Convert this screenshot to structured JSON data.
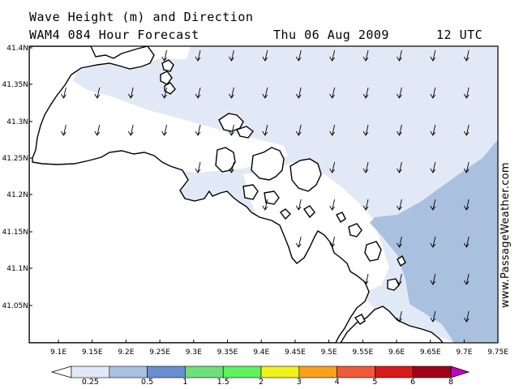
{
  "header": {
    "title": "Wave Height (m) and Direction",
    "subtitle": "WAM4 084 Hour Forecast",
    "date": "Thu 06 Aug 2009",
    "time": "12 UTC"
  },
  "watermark": "www.PassageWeather.com",
  "map": {
    "lat_labels": [
      "41.4N",
      "41.35N",
      "41.3N",
      "41.25N",
      "41.2N",
      "41.15N",
      "41.1N",
      "41.05N"
    ],
    "lon_labels": [
      "9.1E",
      "9.15E",
      "9.2E",
      "9.25E",
      "9.3E",
      "9.35E",
      "9.4E",
      "9.45E",
      "9.5E",
      "9.55E",
      "9.6E",
      "9.65E",
      "9.7E",
      "9.75E"
    ],
    "colors": {
      "sea_low": "#e2e9f6",
      "sea_mid": "#a9c0df",
      "land": "#ffffff",
      "coast": "#000000",
      "arrow": "#000000"
    },
    "wave_direction": "south-southwest"
  },
  "legend": {
    "labels": [
      "0.25",
      "0.5",
      "1",
      "1.5",
      "2",
      "3",
      "4",
      "5",
      "6",
      "8"
    ],
    "colors": [
      "#ffffff",
      "#e2e9f6",
      "#a9c0df",
      "#6a8fd3",
      "#6ee07a",
      "#5ff25f",
      "#f1f11c",
      "#f7a21a",
      "#f05a3a",
      "#d81a1a",
      "#a0001a",
      "#c000c0"
    ]
  }
}
